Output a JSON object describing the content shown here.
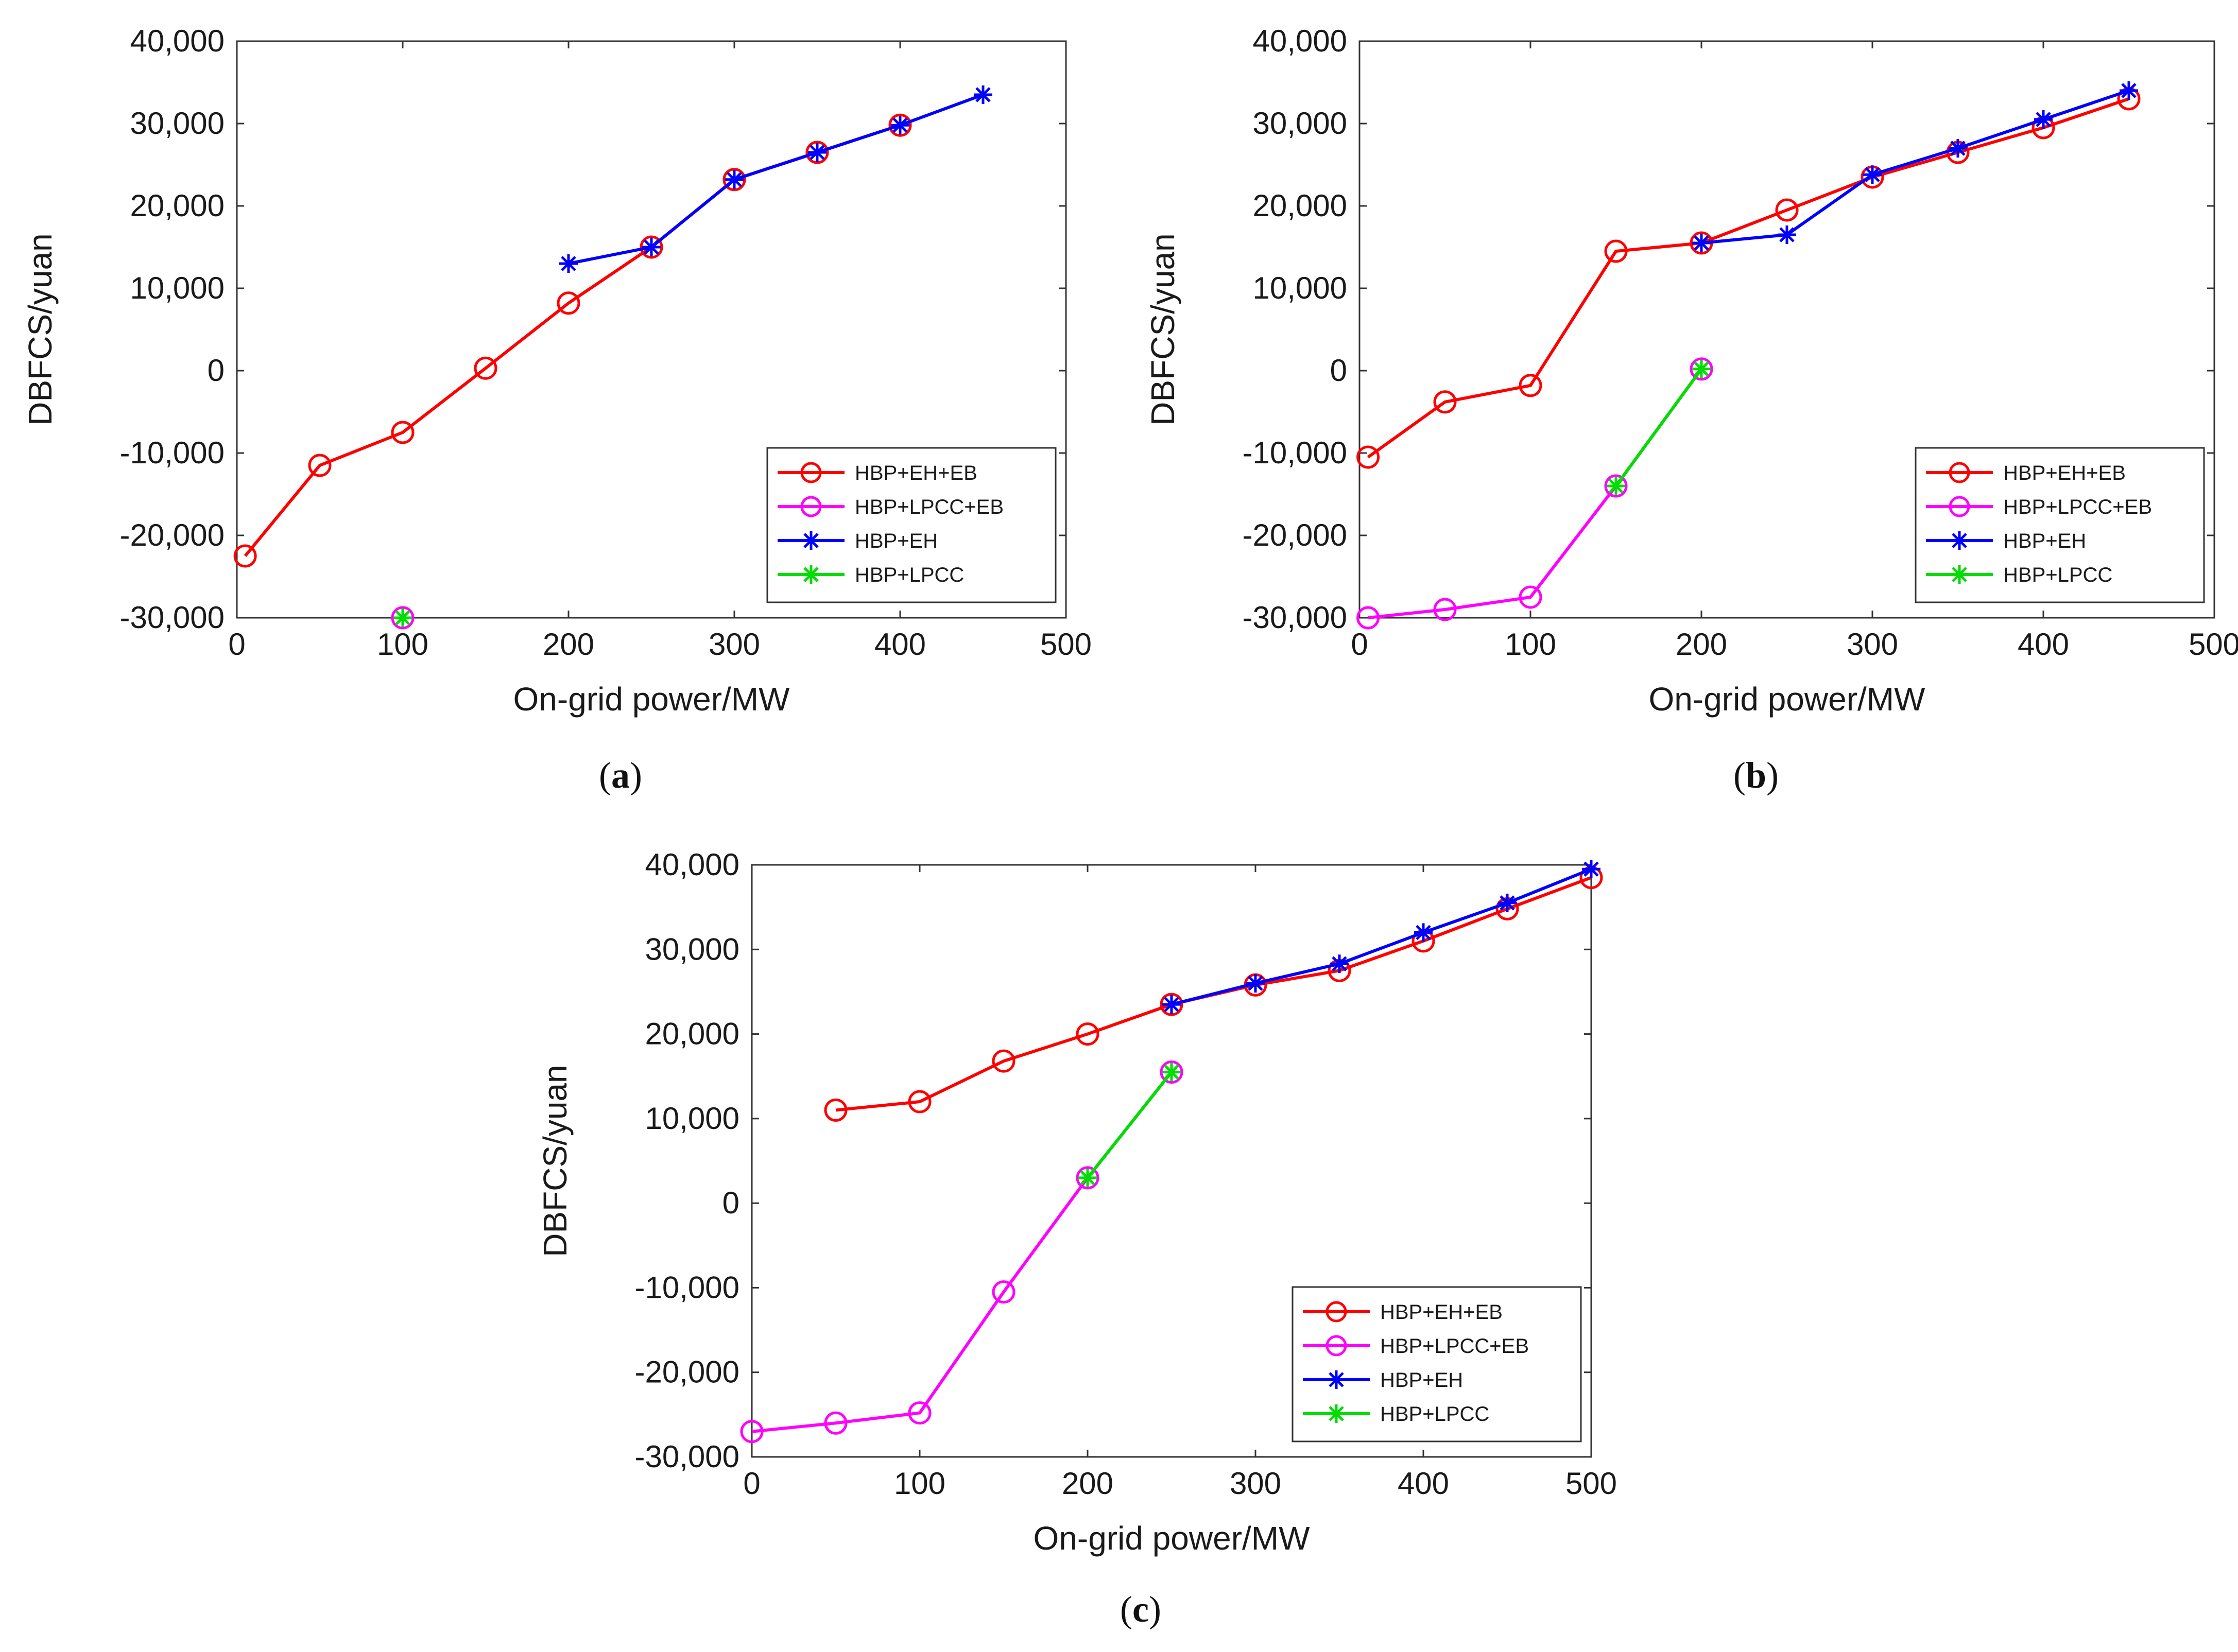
{
  "chart_data": [
    {
      "type": "line",
      "caption": "a",
      "xlabel": "On-grid power/MW",
      "ylabel": "DBFCS/yuan",
      "xlim": [
        0,
        500
      ],
      "ylim": [
        -30000,
        40000
      ],
      "xticks": [
        0,
        100,
        200,
        300,
        400,
        500
      ],
      "yticks": [
        40000,
        30000,
        20000,
        10000,
        0,
        -10000,
        -20000,
        -30000
      ],
      "xtick_labels": [
        "0",
        "100",
        "200",
        "300",
        "400",
        "500"
      ],
      "ytick_labels": [
        "40,000",
        "30,000",
        "20,000",
        "10,000",
        "0",
        "-10,000",
        "-20,000",
        "-30,000"
      ],
      "legend_position": "bottom-right",
      "series": [
        {
          "name": "HBP+EH+EB",
          "color": "#ff0000",
          "marker": "circle",
          "x": [
            5,
            50,
            100,
            150,
            200,
            250,
            300,
            350,
            400
          ],
          "y": [
            -22500,
            -11500,
            -7500,
            300,
            8200,
            15000,
            23200,
            26500,
            29800
          ]
        },
        {
          "name": "HBP+LPCC+EB",
          "color": "#ff00ff",
          "marker": "circle",
          "x": [
            100
          ],
          "y": [
            -30000
          ]
        },
        {
          "name": "HBP+EH",
          "color": "#0000ff",
          "marker": "star",
          "x": [
            200,
            250,
            300,
            350,
            400,
            450
          ],
          "y": [
            13000,
            15000,
            23200,
            26500,
            29800,
            33500
          ]
        },
        {
          "name": "HBP+LPCC",
          "color": "#00dd00",
          "marker": "star",
          "x": [
            100
          ],
          "y": [
            -30000
          ]
        }
      ]
    },
    {
      "type": "line",
      "caption": "b",
      "xlabel": "On-grid power/MW",
      "ylabel": "DBFCS/yuan",
      "xlim": [
        0,
        500
      ],
      "ylim": [
        -30000,
        40000
      ],
      "xticks": [
        0,
        100,
        200,
        300,
        400,
        500
      ],
      "yticks": [
        40000,
        30000,
        20000,
        10000,
        0,
        -10000,
        -20000,
        -30000
      ],
      "xtick_labels": [
        "0",
        "100",
        "200",
        "300",
        "400",
        "500"
      ],
      "ytick_labels": [
        "40,000",
        "30,000",
        "20,000",
        "10,000",
        "0",
        "-10,000",
        "-20,000",
        "-30,000"
      ],
      "legend_position": "bottom-right",
      "series": [
        {
          "name": "HBP+EH+EB",
          "color": "#ff0000",
          "marker": "circle",
          "x": [
            5,
            50,
            100,
            150,
            200,
            250,
            300,
            350,
            400,
            450
          ],
          "y": [
            -10500,
            -3800,
            -1800,
            14500,
            15500,
            19500,
            23500,
            26500,
            29500,
            33000
          ]
        },
        {
          "name": "HBP+LPCC+EB",
          "color": "#ff00ff",
          "marker": "circle",
          "x": [
            5,
            50,
            100,
            150,
            200
          ],
          "y": [
            -30000,
            -29000,
            -27500,
            -14000,
            200
          ]
        },
        {
          "name": "HBP+EH",
          "color": "#0000ff",
          "marker": "star",
          "x": [
            200,
            250,
            300,
            350,
            400,
            450
          ],
          "y": [
            15500,
            16500,
            23800,
            27000,
            30500,
            34000
          ]
        },
        {
          "name": "HBP+LPCC",
          "color": "#00dd00",
          "marker": "star",
          "x": [
            150,
            200
          ],
          "y": [
            -14000,
            200
          ]
        }
      ]
    },
    {
      "type": "line",
      "caption": "c",
      "xlabel": "On-grid power/MW",
      "ylabel": "DBFCS/yuan",
      "xlim": [
        0,
        500
      ],
      "ylim": [
        -30000,
        40000
      ],
      "xticks": [
        0,
        100,
        200,
        300,
        400,
        500
      ],
      "yticks": [
        40000,
        30000,
        20000,
        10000,
        0,
        -10000,
        -20000,
        -30000
      ],
      "xtick_labels": [
        "0",
        "100",
        "200",
        "300",
        "400",
        "500"
      ],
      "ytick_labels": [
        "40,000",
        "30,000",
        "20,000",
        "10,000",
        "0",
        "-10,000",
        "-20,000",
        "-30,000"
      ],
      "legend_position": "bottom-right",
      "series": [
        {
          "name": "HBP+EH+EB",
          "color": "#ff0000",
          "marker": "circle",
          "x": [
            50,
            100,
            150,
            200,
            250,
            300,
            350,
            400,
            450,
            500
          ],
          "y": [
            11000,
            12000,
            16800,
            20000,
            23500,
            25800,
            27500,
            31000,
            34800,
            38500
          ]
        },
        {
          "name": "HBP+LPCC+EB",
          "color": "#ff00ff",
          "marker": "circle",
          "x": [
            0,
            50,
            100,
            150,
            200,
            250
          ],
          "y": [
            -27000,
            -26000,
            -24800,
            -10500,
            3000,
            15500
          ]
        },
        {
          "name": "HBP+EH",
          "color": "#0000ff",
          "marker": "star",
          "x": [
            250,
            300,
            350,
            400,
            450,
            500
          ],
          "y": [
            23500,
            26000,
            28300,
            32000,
            35500,
            39500
          ]
        },
        {
          "name": "HBP+LPCC",
          "color": "#00dd00",
          "marker": "star",
          "x": [
            200,
            250
          ],
          "y": [
            3000,
            15500
          ]
        }
      ]
    }
  ]
}
